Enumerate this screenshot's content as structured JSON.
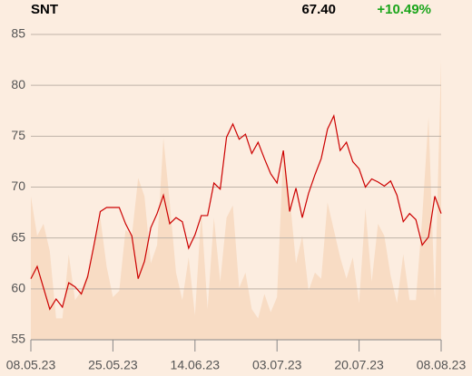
{
  "chart_data": {
    "type": "line",
    "title": "SNT",
    "last": "67.40",
    "change": "+10.49%",
    "change_color": "#1aa51a",
    "categories": [
      "08.05.23",
      null,
      null,
      null,
      null,
      null,
      null,
      null,
      null,
      null,
      null,
      null,
      null,
      "25.05.23",
      null,
      null,
      null,
      null,
      null,
      null,
      null,
      null,
      null,
      null,
      null,
      null,
      "14.06.23",
      null,
      null,
      null,
      null,
      null,
      null,
      null,
      null,
      null,
      null,
      null,
      null,
      "03.07.23",
      null,
      null,
      null,
      null,
      null,
      null,
      null,
      null,
      null,
      null,
      null,
      null,
      "20.07.23",
      null,
      null,
      null,
      null,
      null,
      null,
      null,
      null,
      null,
      null,
      null,
      null,
      "08.08.23"
    ],
    "series": [
      {
        "type": "line",
        "color": "#cc0000",
        "values": [
          61.0,
          62.2,
          60.1,
          58.0,
          59.0,
          58.2,
          60.6,
          60.2,
          59.5,
          61.2,
          64.3,
          67.6,
          68.0,
          68.0,
          68.0,
          66.4,
          65.2,
          61.0,
          62.7,
          66.0,
          67.4,
          69.2,
          66.4,
          67.0,
          66.6,
          64.0,
          65.3,
          67.2,
          67.2,
          70.4,
          69.8,
          74.9,
          76.2,
          74.7,
          75.2,
          73.3,
          74.4,
          72.8,
          71.3,
          70.4,
          73.6,
          67.6,
          69.9,
          67.0,
          69.4,
          71.2,
          72.8,
          75.7,
          77.0,
          73.6,
          74.4,
          72.5,
          71.8,
          70.0,
          70.8,
          70.5,
          70.1,
          70.6,
          69.2,
          66.6,
          67.4,
          66.8,
          64.3,
          65.1,
          69.1,
          67.4
        ]
      },
      {
        "type": "area",
        "axis": "y2",
        "color": "#f8dcc4",
        "values": [
          47,
          34,
          38,
          29,
          7,
          7,
          28,
          13,
          16,
          22,
          31,
          40,
          24,
          14,
          16,
          36,
          34,
          53,
          47,
          25,
          31,
          66,
          45,
          22,
          13,
          27,
          8,
          42,
          10,
          40,
          19,
          40,
          44,
          17,
          22,
          10,
          7,
          15,
          9,
          14,
          62,
          47,
          25,
          34,
          16,
          22,
          20,
          45,
          36,
          27,
          20,
          27,
          12,
          43,
          19,
          38,
          34,
          21,
          12,
          28,
          13,
          13,
          40,
          73,
          13,
          92
        ]
      }
    ],
    "ylim": [
      55,
      85
    ],
    "yticks": [
      55,
      60,
      65,
      70,
      75,
      80,
      85
    ],
    "y2lim": [
      0,
      100
    ],
    "grid": true
  }
}
